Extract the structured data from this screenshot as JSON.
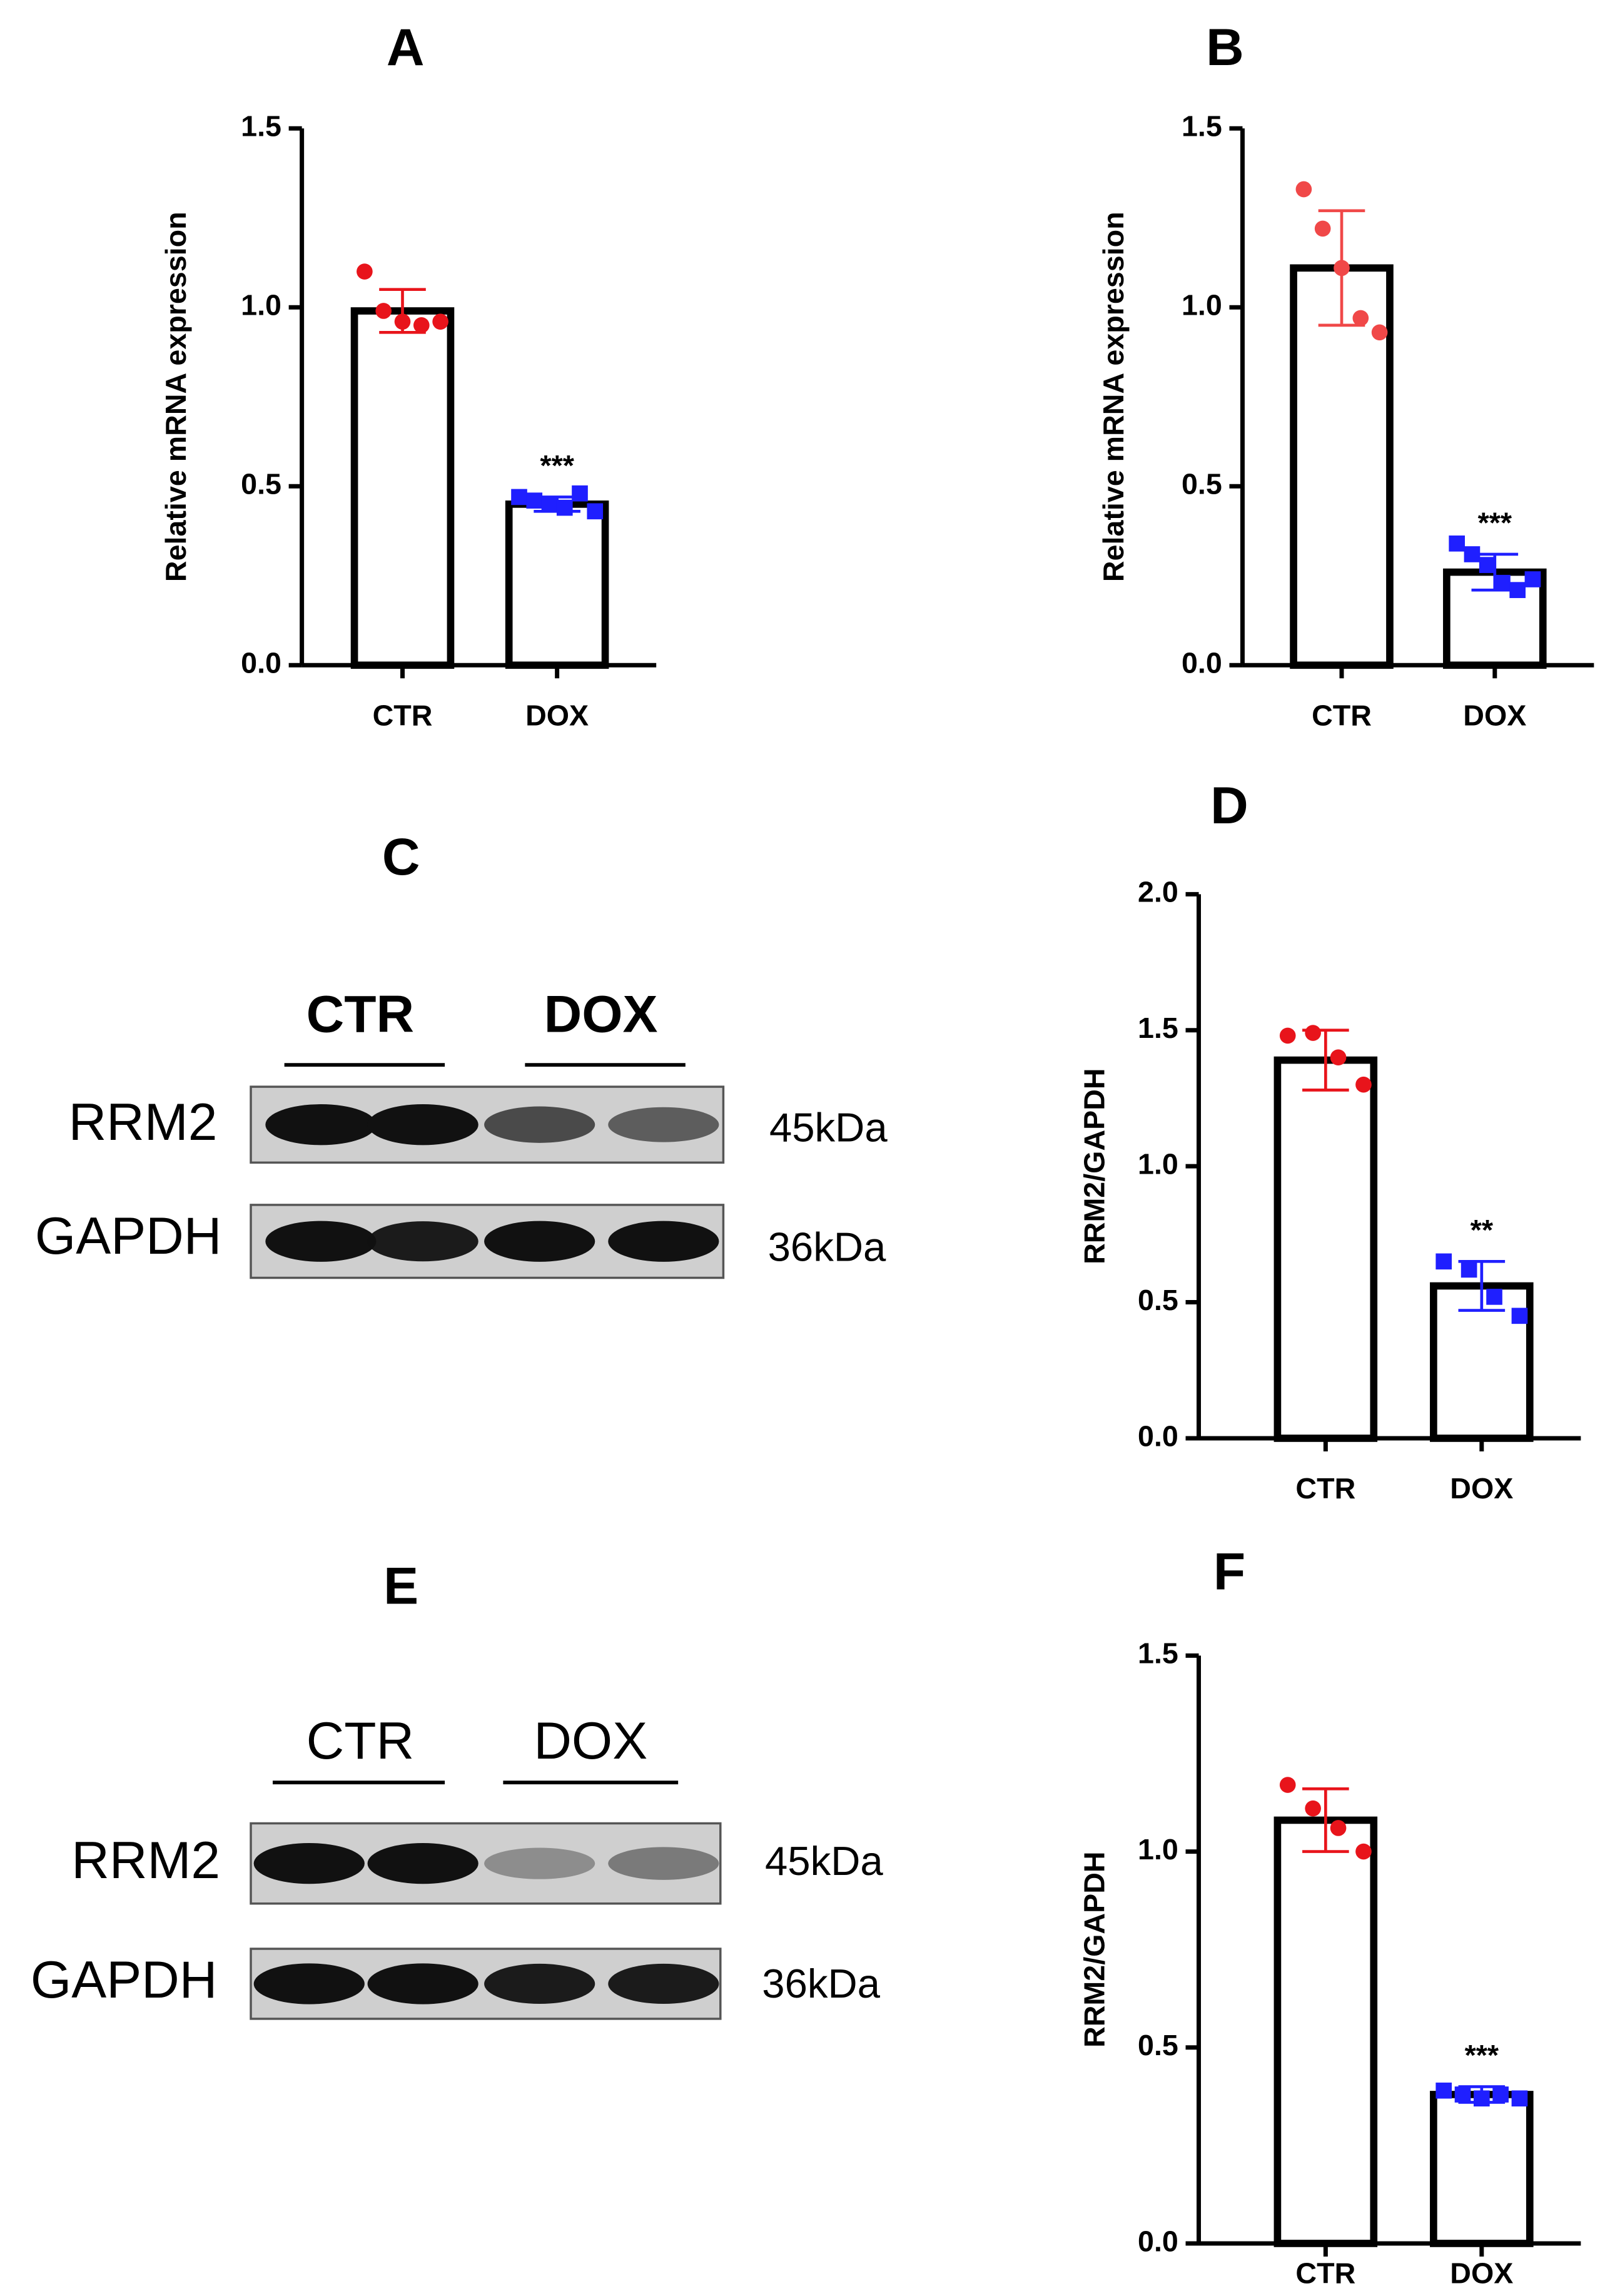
{
  "chart_data": [
    {
      "type": "bar",
      "title": "A",
      "ylabel": "Relative mRNA expression",
      "categories": [
        "CTR",
        "DOX"
      ],
      "values": [
        0.99,
        0.45
      ],
      "errors": [
        0.06,
        0.02
      ],
      "points": [
        [
          1.1,
          0.99,
          0.96,
          0.95,
          0.96
        ],
        [
          0.47,
          0.46,
          0.45,
          0.44,
          0.48,
          0.43
        ]
      ],
      "colors": [
        "#e8141b",
        "#1f1fff"
      ],
      "markers": [
        "circle",
        "square"
      ],
      "annotations": [
        null,
        "***"
      ],
      "ylim": [
        0,
        1.5
      ],
      "yticks": [
        {
          "value": 0,
          "label": "0.0"
        },
        0.5,
        {
          "value": 1,
          "label": "1.0"
        },
        1.5
      ]
    },
    {
      "type": "bar",
      "title": "B",
      "ylabel": "Relative mRNA expression",
      "categories": [
        "CTR",
        "DOX"
      ],
      "values": [
        1.11,
        0.26
      ],
      "errors": [
        0.16,
        0.05
      ],
      "points": [
        [
          1.33,
          1.22,
          1.11,
          0.97,
          0.93
        ],
        [
          0.34,
          0.31,
          0.28,
          0.23,
          0.21,
          0.24
        ]
      ],
      "colors": [
        "#f04848",
        "#1f1fff"
      ],
      "markers": [
        "circle",
        "square"
      ],
      "annotations": [
        null,
        "***"
      ],
      "ylim": [
        0,
        1.5
      ],
      "yticks": [
        {
          "value": 0,
          "label": "0.0"
        },
        0.5,
        {
          "value": 1,
          "label": "1.0"
        },
        1.5
      ]
    },
    {
      "type": "bar",
      "title": "D",
      "ylabel": "RRM2/GAPDH",
      "categories": [
        "CTR",
        "DOX"
      ],
      "values": [
        1.39,
        0.56
      ],
      "errors": [
        0.11,
        0.09
      ],
      "points": [
        [
          1.48,
          1.49,
          1.4,
          1.3
        ],
        [
          0.65,
          0.62,
          0.52,
          0.45
        ]
      ],
      "colors": [
        "#e8141b",
        "#1f1fff"
      ],
      "markers": [
        "circle",
        "square"
      ],
      "annotations": [
        null,
        "**"
      ],
      "ylim": [
        0,
        2
      ],
      "yticks": [
        {
          "value": 0,
          "label": "0.0"
        },
        0.5,
        {
          "value": 1,
          "label": "1.0"
        },
        1.5,
        {
          "value": 2,
          "label": "2.0"
        }
      ]
    },
    {
      "type": "bar",
      "title": "F",
      "ylabel": "RRM2/GAPDH",
      "categories": [
        "CTR",
        "DOX"
      ],
      "values": [
        1.08,
        0.38
      ],
      "errors": [
        0.08,
        0.02
      ],
      "points": [
        [
          1.17,
          1.11,
          1.06,
          1.0
        ],
        [
          0.39,
          0.38,
          0.37,
          0.38,
          0.37
        ]
      ],
      "colors": [
        "#e8141b",
        "#1f1fff"
      ],
      "markers": [
        "circle",
        "square"
      ],
      "annotations": [
        null,
        "***"
      ],
      "ylim": [
        0,
        1.5
      ],
      "yticks": [
        {
          "value": 0,
          "label": "0.0"
        },
        0.5,
        {
          "value": 1,
          "label": "1.0"
        },
        1.5
      ]
    }
  ],
  "blots": [
    {
      "panel": "C",
      "lanes": [
        "CTR",
        "DOX"
      ],
      "rows": [
        {
          "label": "RRM2",
          "size": "45kDa"
        },
        {
          "label": "GAPDH",
          "size": "36kDa"
        }
      ]
    },
    {
      "panel": "E",
      "lanes": [
        "CTR",
        "DOX"
      ],
      "rows": [
        {
          "label": "RRM2",
          "size": "45kDa"
        },
        {
          "label": "GAPDH",
          "size": "36kDa"
        }
      ]
    }
  ]
}
